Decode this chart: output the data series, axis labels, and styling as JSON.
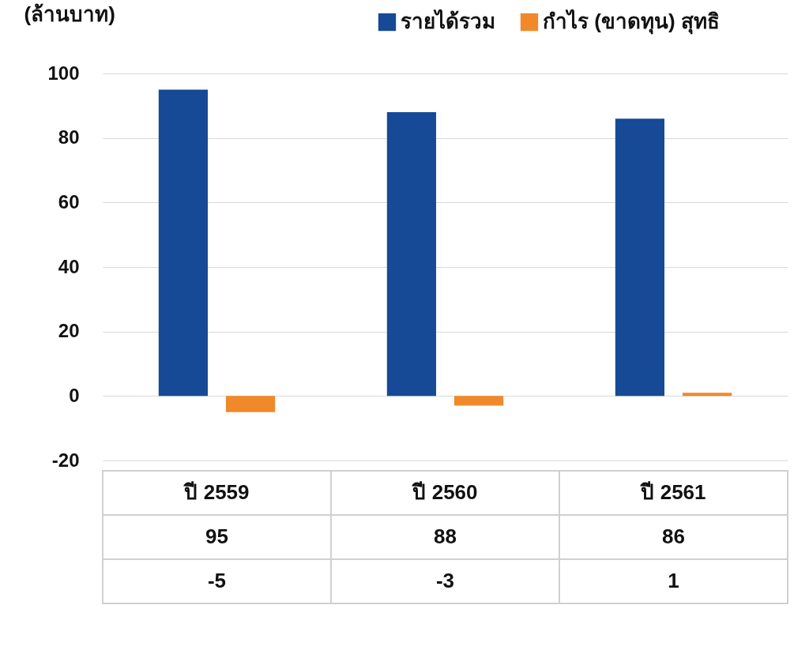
{
  "chart_data": {
    "type": "bar",
    "ylabel": "(ล้านบาท)",
    "categories": [
      "ปี 2559",
      "ปี 2560",
      "ปี 2561"
    ],
    "series": [
      {
        "name": "รายได้รวม",
        "color": "#164a97",
        "values": [
          95,
          88,
          86
        ]
      },
      {
        "name": "กำไร (ขาดทุน) สุทธิ",
        "color": "#f0892a",
        "values": [
          -5,
          -3,
          1
        ]
      }
    ],
    "ylim": [
      -20,
      100
    ],
    "yticks": [
      -20,
      0,
      20,
      40,
      60,
      80,
      100
    ],
    "grid": "y",
    "legend": "top right",
    "data_labels": true
  }
}
